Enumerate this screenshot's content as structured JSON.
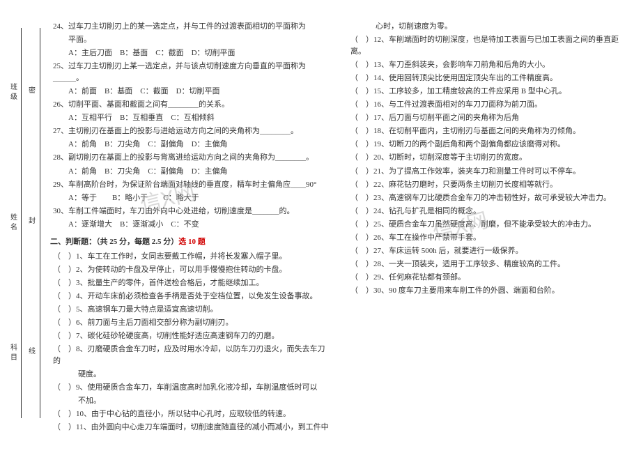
{
  "side": {
    "outer": [
      "班级",
      "姓名",
      "科目"
    ],
    "inner": [
      "密",
      "封",
      "线"
    ]
  },
  "left_col": [
    {
      "cls": "q",
      "t": "24、过车刀主切削刃上的某一选定点，并与工件的过渡表面相切的平面称为"
    },
    {
      "cls": "indent",
      "t": "平面。"
    },
    {
      "cls": "opts",
      "t": "A：主后刀面　B：基面　C：截面　D：切削平面"
    },
    {
      "cls": "q",
      "t": "25、过车刀主切削刃上某一选定点，并与该点切削速度方向垂直的平面称为______。"
    },
    {
      "cls": "opts",
      "t": "A：前面　B：基面　C：截面　D：切削平面"
    },
    {
      "cls": "q",
      "t": "26、切削平面、基面和截面之间有________的关系。"
    },
    {
      "cls": "opts",
      "t": "A：互相平行　B：互相垂直　C：互相倾斜"
    },
    {
      "cls": "q",
      "t": "27、主切削刃在基面上的投影与进给运动方向之间的夹角称为________。"
    },
    {
      "cls": "opts",
      "t": "A：前角　B：刀尖角　C：副偏角　D：主偏角"
    },
    {
      "cls": "q",
      "t": "28、副切削刃在基面上的投影与背离进给运动方向之间的夹角称为________。"
    },
    {
      "cls": "opts",
      "t": "A：前角　B：刀尖角　C：副偏角　D：主偏角"
    },
    {
      "cls": "q",
      "t": "29、车削高阶台时，为保证阶台端面对轴线的垂直度，精车时主偏角应____90°"
    },
    {
      "cls": "opts",
      "t": "A：等于　　B：略小于　　C：略大于"
    },
    {
      "cls": "q",
      "t": "30、车削工件端面时，车刀由外向中心处进给，切削速度是_______的。"
    },
    {
      "cls": "opts",
      "t": "A：逐渐增大　B：逐渐减小　C：不变"
    },
    {
      "cls": "section-title",
      "t": "二、判断题：（共 25 分，每题 2.5 分）",
      "red": "选 10 题"
    },
    {
      "cls": "q",
      "t": "（　）1、车工在工作时，女同志要戴工作帽，并将长发塞入帽子里。"
    },
    {
      "cls": "q",
      "t": "（　）2、为使转动的卡盘及早停止，可以用手慢慢抱住转动的卡盘。"
    },
    {
      "cls": "q",
      "t": "（　）3、批量生产的零件，首件送检合格后，才能继续加工。"
    },
    {
      "cls": "q",
      "t": "（　）4、开动车床前必须检查各手柄是否处于空档位置，以免发生设备事故。"
    },
    {
      "cls": "q",
      "t": "（　）5、高速钢车刀最大特点是适宜高速切削。"
    },
    {
      "cls": "q",
      "t": "（　）6、前刀面与主后刀面相交部分称为副切削刃。"
    },
    {
      "cls": "q",
      "t": "（　）7、碳化硅砂轮硬度高，切削性能好适应高速钢车刀的刃磨。"
    },
    {
      "cls": "q",
      "t": "（　）8、刃磨硬质合金车刀时，应及时用水冷却，以防车刀刃退火，而失去车刀的"
    },
    {
      "cls": "indent2",
      "t": "硬度。"
    },
    {
      "cls": "q",
      "t": "（　）9、使用硬质合金车刀，车削温度高时加乳化液冷却，车削温度低时可以"
    },
    {
      "cls": "indent2",
      "t": "不加。"
    },
    {
      "cls": "q",
      "t": "（　）10、由于中心钻的直径小，所以钻中心孔时，应取较低的转速。"
    },
    {
      "cls": "q",
      "t": "（　）11、由外圆向中心走刀车端面时，切削速度随直径的减小而减小，到工件中"
    }
  ],
  "right_col": [
    {
      "cls": "indent2",
      "t": "心时，切削速度为零。"
    },
    {
      "cls": "q",
      "t": "（　）12、车削端面时的切削深度，也是待加工表面与已加工表面之间的垂直距离。"
    },
    {
      "cls": "q",
      "t": "（　）13、车刀歪斜装夹，会影响车刀前角和后角的大小。"
    },
    {
      "cls": "q",
      "t": "（　）14、使用回转顶尖比使用固定顶尖车出的工件精度高。"
    },
    {
      "cls": "q",
      "t": "（　）15、工序较多，加工精度较高的工件应采用 B 型中心孔。"
    },
    {
      "cls": "q",
      "t": "（　）16、与工件过渡表面相对的车刀刀面称为前刀面。"
    },
    {
      "cls": "q",
      "t": "（　）17、后刀面与切削平面之间的夹角称为后角"
    },
    {
      "cls": "q",
      "t": "（　）18、在切削平面内，主切削刃与基面之间的夹角称为刃倾角。"
    },
    {
      "cls": "q",
      "t": "（　）19、切断刀的两个副后角和两个副偏角都应该磨得对称。"
    },
    {
      "cls": "q",
      "t": "（　）20、切断时，切削深度等于主切削刃的宽度。"
    },
    {
      "cls": "q",
      "t": "（　）21、为了提高工作效率，装夹车刀和测量工件时可以不停车。"
    },
    {
      "cls": "q",
      "t": "（　）22、麻花钻刃磨时，只要两条主切削刃长度相等就行。"
    },
    {
      "cls": "q",
      "t": "（　）23、高速钢车刀比硬质合金车刀的冲击韧性好，故可承受较大冲击力。"
    },
    {
      "cls": "q",
      "t": "（　）24、钻孔与扩孔是相同的概念。"
    },
    {
      "cls": "q",
      "t": "（　）25、硬质合金车刀虽然硬度高、耐磨，但不能承受较大的冲击力。"
    },
    {
      "cls": "q",
      "t": "（　）26、车工在操作中严禁带手套。"
    },
    {
      "cls": "q",
      "t": "（　）27、车床运转 500h 后，就要进行一级保养。"
    },
    {
      "cls": "q",
      "t": "（　）28、一夹一顶装夹，适用于工序较多、精度较高的工件。"
    },
    {
      "cls": "q",
      "t": "（　）29、任何麻花钻都有颈部。"
    },
    {
      "cls": "q",
      "t": "（　）30、90 度车刀主要用来车削工件的外圆、端面和台阶。"
    }
  ],
  "watermark": "信X网"
}
